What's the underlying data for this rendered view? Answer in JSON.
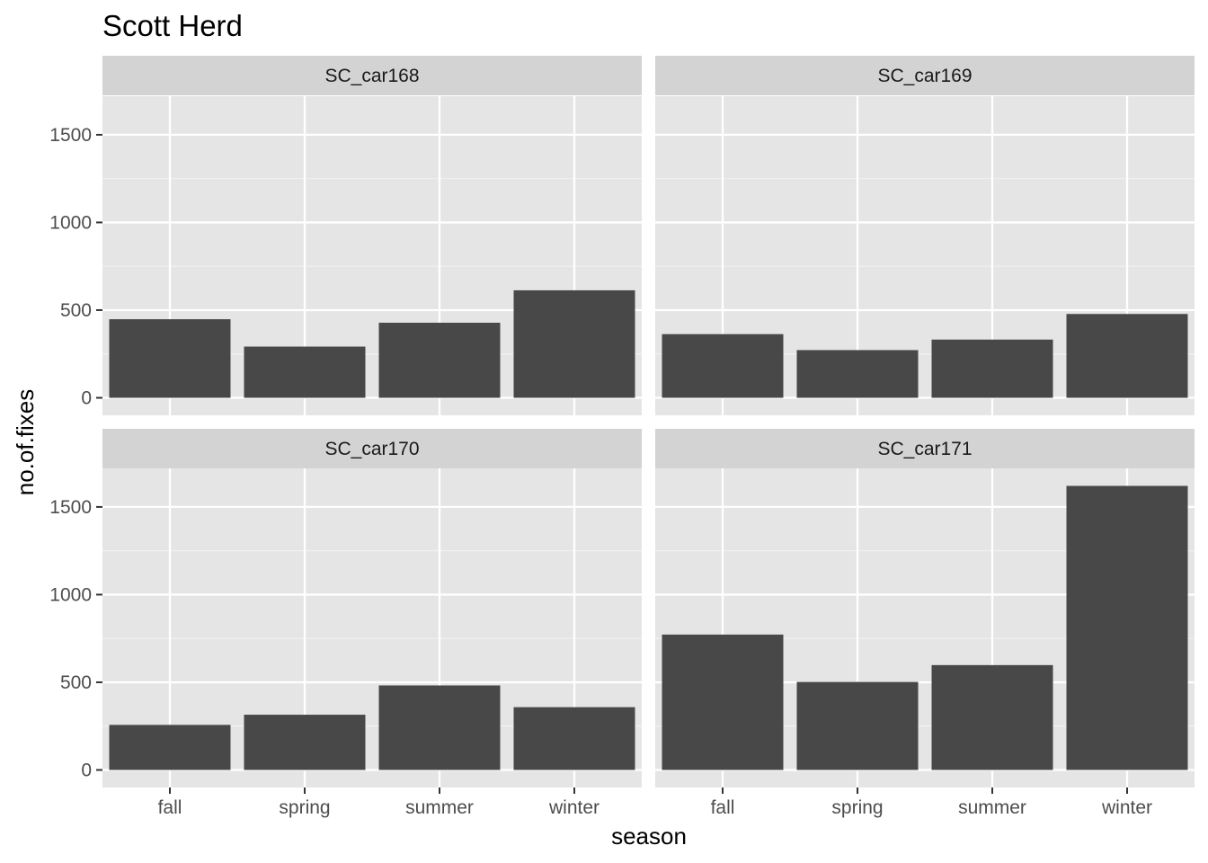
{
  "chart_data": {
    "type": "bar",
    "title": "Scott Herd",
    "xlabel": "season",
    "ylabel": "no.of.fixes",
    "categories": [
      "fall",
      "spring",
      "summer",
      "winter"
    ],
    "yticks": [
      0,
      500,
      1000,
      1500
    ],
    "ylim": [
      -100,
      1720
    ],
    "grid": true,
    "bar_color": "#484848",
    "panel_bg": "#e5e5e5",
    "strip_bg": "#d3d3d3",
    "panels": [
      {
        "name": "SC_car168",
        "values": [
          448,
          292,
          428,
          613
        ]
      },
      {
        "name": "SC_car169",
        "values": [
          363,
          272,
          332,
          478
        ]
      },
      {
        "name": "SC_car170",
        "values": [
          257,
          315,
          482,
          358
        ]
      },
      {
        "name": "SC_car171",
        "values": [
          772,
          502,
          598,
          1620
        ]
      }
    ]
  }
}
